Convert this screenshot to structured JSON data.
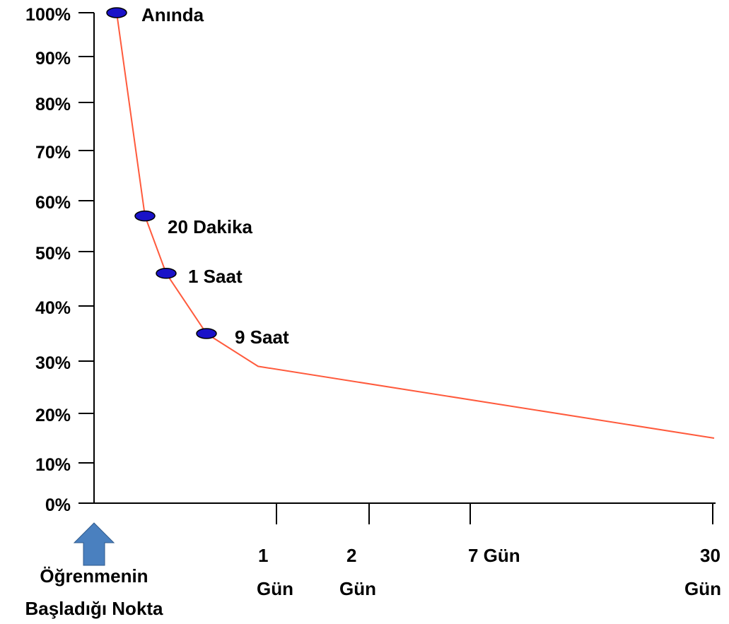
{
  "chart_data": {
    "type": "line",
    "title": "",
    "xlabel": "",
    "ylabel": "",
    "ylim": [
      0,
      100
    ],
    "y_ticks": [
      "0%",
      "10%",
      "20%",
      "30%",
      "40%",
      "50%",
      "60%",
      "70%",
      "80%",
      "90%",
      "100%"
    ],
    "x_tick_labels": [
      {
        "line1": "1",
        "line2": "Gün"
      },
      {
        "line1": "2",
        "line2": "Gün"
      },
      {
        "line1": "7 Gün",
        "line2": ""
      },
      {
        "line1": "30",
        "line2": "Gün"
      }
    ],
    "start_label": [
      "Öğrenmenin",
      "Başladığı Nokta"
    ],
    "series": [
      {
        "color": "#ff5a3c",
        "marker_color": "#1a12c8",
        "points": [
          {
            "label": "Anında",
            "y": 100
          },
          {
            "label": "20 Dakika",
            "y": 57
          },
          {
            "label": "1 Saat",
            "y": 46
          },
          {
            "label": "9 Saat",
            "y": 35
          },
          {
            "label": "1 Gün",
            "y": 29
          },
          {
            "label": "30 Gün",
            "y": 15
          }
        ]
      }
    ],
    "marked_points": [
      "Anında",
      "20 Dakika",
      "1 Saat",
      "9 Saat"
    ],
    "grid": false,
    "legend": "none",
    "start_arrow_color": "#4a80bf"
  }
}
